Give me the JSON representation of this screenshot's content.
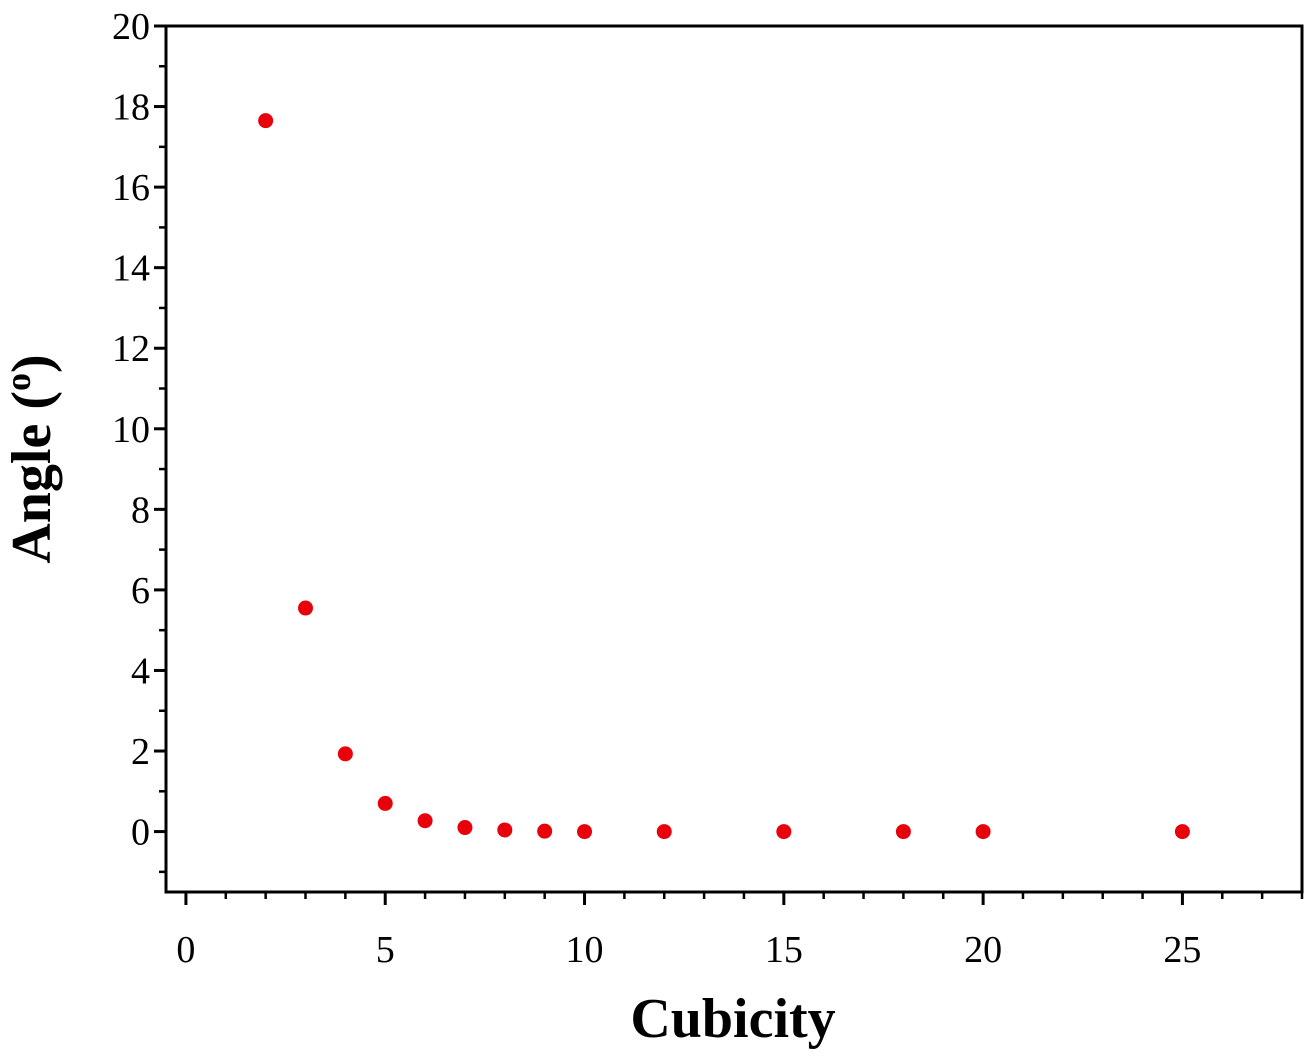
{
  "chart_data": {
    "type": "scatter",
    "xlabel": "Cubicity",
    "ylabel_text": "Angle (",
    "ylabel_sup": "o",
    "ylabel_close": ")",
    "xlim": [
      -0.5,
      28
    ],
    "ylim": [
      -1.5,
      20
    ],
    "xticks": [
      0,
      5,
      10,
      15,
      20,
      25
    ],
    "yticks": [
      0,
      2,
      4,
      6,
      8,
      10,
      12,
      14,
      16,
      18,
      20
    ],
    "grid": false,
    "marker_color": "#e8000b",
    "points": [
      {
        "x": 2,
        "y": 17.65
      },
      {
        "x": 3,
        "y": 5.55
      },
      {
        "x": 4,
        "y": 1.93
      },
      {
        "x": 5,
        "y": 0.7
      },
      {
        "x": 6,
        "y": 0.27
      },
      {
        "x": 7,
        "y": 0.1
      },
      {
        "x": 8,
        "y": 0.04
      },
      {
        "x": 9,
        "y": 0.01
      },
      {
        "x": 10,
        "y": 0.0
      },
      {
        "x": 12,
        "y": 0.0
      },
      {
        "x": 15,
        "y": 0.0
      },
      {
        "x": 18,
        "y": 0.0
      },
      {
        "x": 20,
        "y": 0.0
      },
      {
        "x": 25,
        "y": 0.0
      }
    ]
  }
}
